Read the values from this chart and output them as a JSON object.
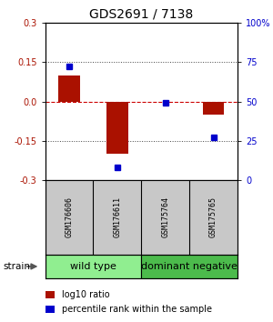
{
  "title": "GDS2691 / 7138",
  "samples": [
    "GSM176606",
    "GSM176611",
    "GSM175764",
    "GSM175765"
  ],
  "log10_ratio": [
    0.1,
    -0.2,
    0.0,
    -0.05
  ],
  "percentile_rank": [
    72,
    8,
    49,
    27
  ],
  "groups": [
    {
      "name": "wild type",
      "samples": [
        0,
        1
      ],
      "color": "#90EE90"
    },
    {
      "name": "dominant negative",
      "samples": [
        2,
        3
      ],
      "color": "#4CBB4C"
    }
  ],
  "ylim_left": [
    -0.3,
    0.3
  ],
  "ylim_right": [
    0,
    100
  ],
  "yticks_left": [
    -0.3,
    -0.15,
    0.0,
    0.15,
    0.3
  ],
  "yticks_right": [
    0,
    25,
    50,
    75,
    100
  ],
  "bar_color": "#AA1100",
  "dot_color": "#0000CC",
  "hline_color_zero": "#CC0000",
  "hline_color_grid": "#444444",
  "sample_bg": "#C8C8C8",
  "bg_color": "#FFFFFF",
  "legend_ratio_label": "log10 ratio",
  "legend_pct_label": "percentile rank within the sample",
  "strain_label": "strain",
  "group_label_fontsize": 8,
  "sample_fontsize": 6,
  "tick_fontsize": 7,
  "title_fontsize": 10
}
